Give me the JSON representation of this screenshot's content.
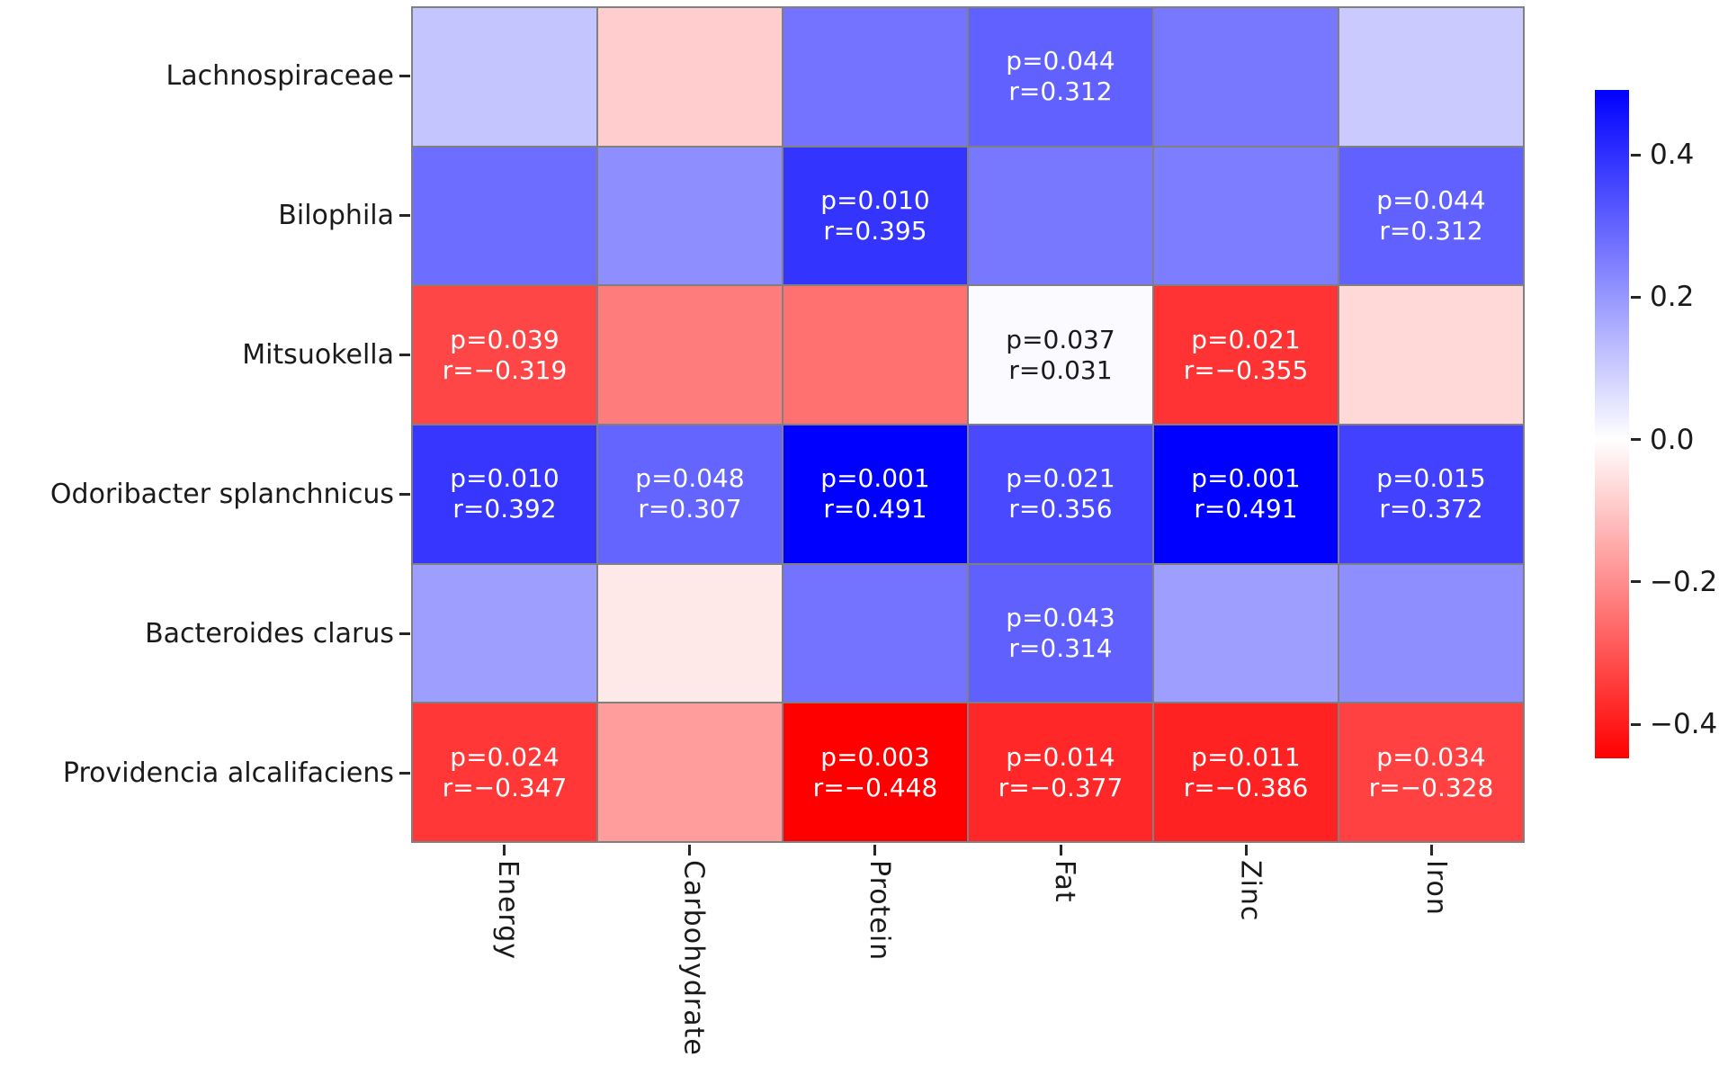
{
  "figure": {
    "background": "#ffffff",
    "gridline_color": "#808080",
    "tick_color": "#262626",
    "label_color": "#1a1a1a"
  },
  "chart_data": {
    "type": "heatmap",
    "description": "Correlation heatmap of bacterial taxa vs dietary nutrients; significant cells annotated with p-value and Spearman/Pearson r",
    "rows": [
      "Lachnospiraceae",
      "Bilophila",
      "Mitsuokella",
      "Odoribacter splanchnicus",
      "Bacteroides clarus",
      "Providencia alcalifaciens"
    ],
    "columns": [
      "Energy",
      "Carbohydrate",
      "Protein",
      "Fat",
      "Zinc",
      "Iron"
    ],
    "colormap": {
      "type": "bwr_r",
      "vmin": -0.448,
      "vmax": 0.491,
      "negative_color": "#ff0000",
      "mid_color": "#ffffff",
      "positive_color": "#0000ff"
    },
    "legend_position": "right",
    "grid": true,
    "colorbar_ticks": [
      {
        "label": "0.4",
        "value": 0.4
      },
      {
        "label": "0.2",
        "value": 0.2
      },
      {
        "label": "0.0",
        "value": 0.0
      },
      {
        "label": "−0.2",
        "value": -0.2
      },
      {
        "label": "−0.4",
        "value": -0.4
      }
    ],
    "cells": [
      [
        {
          "r": 0.13
        },
        {
          "r": -0.07
        },
        {
          "r": 0.28
        },
        {
          "r": 0.312,
          "p_label": "p=0.044",
          "r_label": "r=0.312"
        },
        {
          "r": 0.27
        },
        {
          "r": 0.12
        }
      ],
      [
        {
          "r": 0.29
        },
        {
          "r": 0.23
        },
        {
          "r": 0.395,
          "p_label": "p=0.010",
          "r_label": "r=0.395"
        },
        {
          "r": 0.27
        },
        {
          "r": 0.26
        },
        {
          "r": 0.312,
          "p_label": "p=0.044",
          "r_label": "r=0.312"
        }
      ],
      [
        {
          "r": -0.319,
          "p_label": "p=0.039",
          "r_label": "r=−0.319"
        },
        {
          "r": -0.22
        },
        {
          "r": -0.24
        },
        {
          "r": 0.031,
          "p_label": "p=0.037",
          "r_label": "r=0.031"
        },
        {
          "r": -0.355,
          "p_label": "p=0.021",
          "r_label": "r=−0.355"
        },
        {
          "r": -0.05
        }
      ],
      [
        {
          "r": 0.392,
          "p_label": "p=0.010",
          "r_label": "r=0.392"
        },
        {
          "r": 0.307,
          "p_label": "p=0.048",
          "r_label": "r=0.307"
        },
        {
          "r": 0.491,
          "p_label": "p=0.001",
          "r_label": "r=0.491"
        },
        {
          "r": 0.356,
          "p_label": "p=0.021",
          "r_label": "r=0.356"
        },
        {
          "r": 0.491,
          "p_label": "p=0.001",
          "r_label": "r=0.491"
        },
        {
          "r": 0.372,
          "p_label": "p=0.015",
          "r_label": "r=0.372"
        }
      ],
      [
        {
          "r": 0.2
        },
        {
          "r": -0.02
        },
        {
          "r": 0.28
        },
        {
          "r": 0.314,
          "p_label": "p=0.043",
          "r_label": "r=0.314"
        },
        {
          "r": 0.2
        },
        {
          "r": 0.23
        }
      ],
      [
        {
          "r": -0.347,
          "p_label": "p=0.024",
          "r_label": "r=−0.347"
        },
        {
          "r": -0.16
        },
        {
          "r": -0.448,
          "p_label": "p=0.003",
          "r_label": "r=−0.448"
        },
        {
          "r": -0.377,
          "p_label": "p=0.014",
          "r_label": "r=−0.377"
        },
        {
          "r": -0.386,
          "p_label": "p=0.011",
          "r_label": "r=−0.386"
        },
        {
          "r": -0.328,
          "p_label": "p=0.034",
          "r_label": "r=−0.328"
        }
      ]
    ]
  }
}
